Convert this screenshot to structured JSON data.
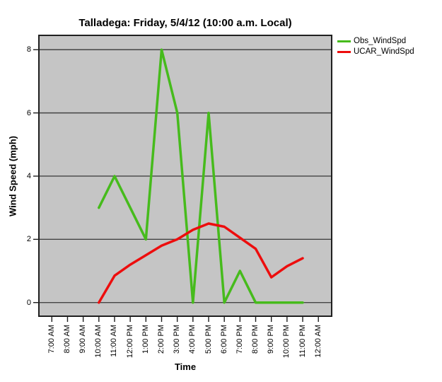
{
  "title": "Talladega: Friday, 5/4/12 (10:00 a.m. Local)",
  "colors": {
    "obs_green": "#46BB1C",
    "ucar_red": "#ED0D0D",
    "plot_background": "#C5C5C5",
    "gridline": "#454545",
    "frame": "#1f1f1f",
    "page_background": "#ffffff",
    "text": "#000000"
  },
  "chart_data": {
    "type": "line",
    "title": "Talladega: Friday, 5/4/12 (10:00 a.m. Local)",
    "xlabel": "Time",
    "ylabel": "Wind Speed (mph)",
    "categories": [
      "7:00 AM",
      "8:00 AM",
      "9:00 AM",
      "10:00 AM",
      "11:00 AM",
      "12:00 PM",
      "1:00 PM",
      "2:00 PM",
      "3:00 PM",
      "4:00 PM",
      "5:00 PM",
      "6:00 PM",
      "7:00 PM",
      "8:00 PM",
      "9:00 PM",
      "10:00 PM",
      "11:00 PM",
      "12:00 AM"
    ],
    "y_ticks": [
      0,
      2,
      4,
      6,
      8
    ],
    "ylim": [
      -0.46,
      8.47
    ],
    "grid": "horizontal",
    "legend_position": "outside-top-right",
    "series": [
      {
        "name": "Obs_WindSpd",
        "color": "#46BB1C",
        "start_index": 3,
        "x": [
          "10:00 AM",
          "11:00 AM",
          "12:00 PM",
          "1:00 PM",
          "2:00 PM",
          "3:00 PM",
          "4:00 PM",
          "5:00 PM",
          "6:00 PM",
          "7:00 PM",
          "8:00 PM",
          "9:00 PM",
          "10:00 PM",
          "11:00 PM"
        ],
        "values": [
          3,
          4,
          3,
          2,
          8,
          6,
          0,
          6,
          0,
          1,
          0,
          0,
          0,
          0
        ]
      },
      {
        "name": "UCAR_WindSpd",
        "color": "#ED0D0D",
        "start_index": 3,
        "x": [
          "10:00 AM",
          "11:00 AM",
          "12:00 PM",
          "1:00 PM",
          "2:00 PM",
          "3:00 PM",
          "4:00 PM",
          "5:00 PM",
          "6:00 PM",
          "7:00 PM",
          "8:00 PM",
          "9:00 PM",
          "10:00 PM",
          "11:00 PM"
        ],
        "values": [
          0,
          0.85,
          1.2,
          1.5,
          1.8,
          2.0,
          2.3,
          2.5,
          2.4,
          2.05,
          1.7,
          0.8,
          1.15,
          1.4
        ]
      }
    ]
  }
}
